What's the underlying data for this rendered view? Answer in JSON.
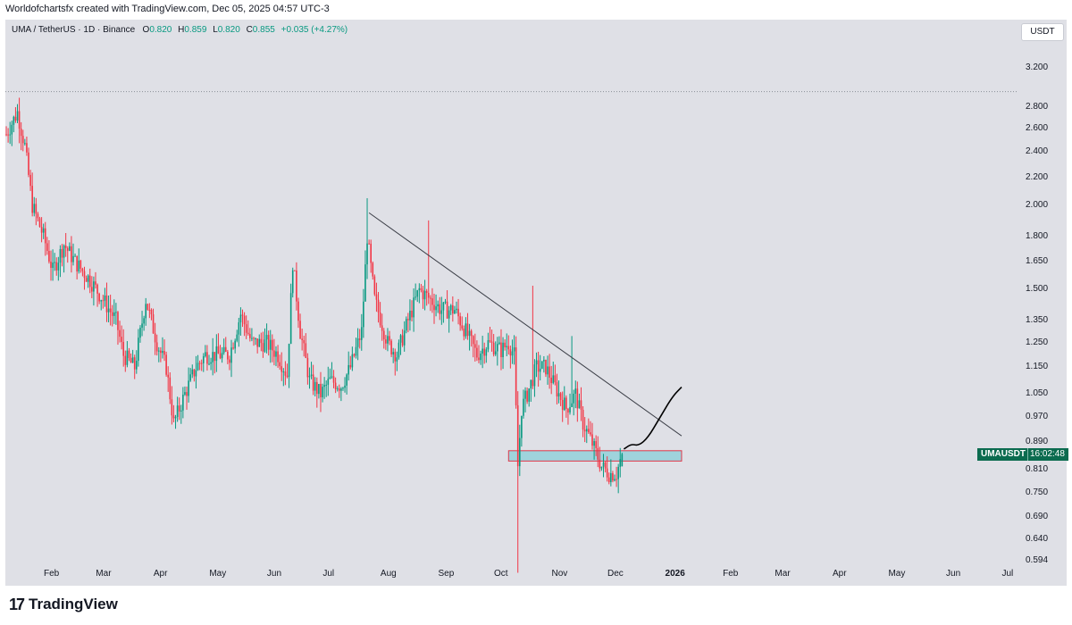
{
  "header": {
    "created_by": "Worldofchartsfx created with TradingView.com, Dec 05, 2025 04:57 UTC-3"
  },
  "symbol": {
    "name": "UMA / TetherUS · 1D · Binance",
    "open_label": "O",
    "open": "0.820",
    "high_label": "H",
    "high": "0.859",
    "low_label": "L",
    "low": "0.820",
    "close_label": "C",
    "close": "0.855",
    "change": "+0.035 (+4.27%)"
  },
  "currency": "USDT",
  "price_tag": {
    "symbol": "UMAUSDT",
    "countdown": "16:02:48"
  },
  "brand": {
    "mark": "17",
    "name": "TradingView"
  },
  "colors": {
    "up": "#089981",
    "down": "#f23645",
    "background": "#dfe0e6",
    "zone_fill": "#9fd3dc",
    "zone_border": "#e0384a"
  },
  "chart_data": {
    "type": "candlestick",
    "y_scale": "log",
    "ylim": [
      0.58,
      3.6
    ],
    "y_ticks": [
      "3.200",
      "2.800",
      "2.600",
      "2.400",
      "2.200",
      "2.000",
      "1.800",
      "1.650",
      "1.500",
      "1.350",
      "1.250",
      "1.150",
      "1.050",
      "0.970",
      "0.890",
      "0.810",
      "0.750",
      "0.690",
      "0.640",
      "0.594"
    ],
    "x_ticks": [
      "Feb",
      "Mar",
      "Apr",
      "May",
      "Jun",
      "Jul",
      "Aug",
      "Sep",
      "Oct",
      "Nov",
      "Dec",
      "2026",
      "Feb",
      "Mar",
      "Apr",
      "May",
      "Jun",
      "Jul"
    ],
    "x_tick_dates": [
      "2025-02-01",
      "2025-03-01",
      "2025-04-01",
      "2025-05-01",
      "2025-06-01",
      "2025-07-01",
      "2025-08-01",
      "2025-09-01",
      "2025-10-01",
      "2025-11-01",
      "2025-12-01",
      "2026-01-01",
      "2026-02-01",
      "2026-03-01",
      "2026-04-01",
      "2026-05-01",
      "2026-06-01",
      "2026-07-01"
    ],
    "data_start": "2025-01-08",
    "last_candle": {
      "date": "2025-12-05",
      "open": 0.82,
      "high": 0.859,
      "low": 0.82,
      "close": 0.855
    },
    "price_path": [
      [
        "2025-01-08",
        2.55
      ],
      [
        "2025-01-14",
        2.75
      ],
      [
        "2025-01-18",
        2.45
      ],
      [
        "2025-01-22",
        2.0
      ],
      [
        "2025-01-28",
        1.8
      ],
      [
        "2025-02-02",
        1.6
      ],
      [
        "2025-02-08",
        1.75
      ],
      [
        "2025-02-14",
        1.65
      ],
      [
        "2025-02-22",
        1.55
      ],
      [
        "2025-03-01",
        1.45
      ],
      [
        "2025-03-08",
        1.35
      ],
      [
        "2025-03-12",
        1.2
      ],
      [
        "2025-03-18",
        1.15
      ],
      [
        "2025-03-24",
        1.45
      ],
      [
        "2025-03-30",
        1.25
      ],
      [
        "2025-04-04",
        1.15
      ],
      [
        "2025-04-08",
        0.95
      ],
      [
        "2025-04-14",
        1.05
      ],
      [
        "2025-04-20",
        1.15
      ],
      [
        "2025-04-25",
        1.2
      ],
      [
        "2025-05-01",
        1.2
      ],
      [
        "2025-05-08",
        1.2
      ],
      [
        "2025-05-14",
        1.38
      ],
      [
        "2025-05-20",
        1.25
      ],
      [
        "2025-05-28",
        1.25
      ],
      [
        "2025-06-03",
        1.2
      ],
      [
        "2025-06-08",
        1.12
      ],
      [
        "2025-06-11",
        1.65
      ],
      [
        "2025-06-15",
        1.3
      ],
      [
        "2025-06-20",
        1.1
      ],
      [
        "2025-06-26",
        1.05
      ],
      [
        "2025-07-01",
        1.1
      ],
      [
        "2025-07-07",
        1.08
      ],
      [
        "2025-07-12",
        1.15
      ],
      [
        "2025-07-18",
        1.3
      ],
      [
        "2025-07-21",
        1.8
      ],
      [
        "2025-07-25",
        1.45
      ],
      [
        "2025-08-01",
        1.25
      ],
      [
        "2025-08-06",
        1.2
      ],
      [
        "2025-08-12",
        1.35
      ],
      [
        "2025-08-18",
        1.5
      ],
      [
        "2025-08-24",
        1.45
      ],
      [
        "2025-08-30",
        1.4
      ],
      [
        "2025-09-06",
        1.4
      ],
      [
        "2025-09-12",
        1.3
      ],
      [
        "2025-09-18",
        1.2
      ],
      [
        "2025-09-24",
        1.25
      ],
      [
        "2025-10-01",
        1.22
      ],
      [
        "2025-10-05",
        1.25
      ],
      [
        "2025-10-08",
        1.2
      ],
      [
        "2025-10-10",
        0.82
      ],
      [
        "2025-10-12",
        1.0
      ],
      [
        "2025-10-15",
        1.05
      ],
      [
        "2025-10-20",
        1.15
      ],
      [
        "2025-10-25",
        1.15
      ],
      [
        "2025-11-01",
        1.05
      ],
      [
        "2025-11-05",
        1.0
      ],
      [
        "2025-11-10",
        1.05
      ],
      [
        "2025-11-14",
        0.95
      ],
      [
        "2025-11-18",
        0.9
      ],
      [
        "2025-11-24",
        0.82
      ],
      [
        "2025-11-28",
        0.8
      ],
      [
        "2025-12-02",
        0.8
      ],
      [
        "2025-12-05",
        0.855
      ]
    ],
    "trendline": {
      "start": [
        "2025-07-22",
        1.95
      ],
      "end": [
        "2026-01-06",
        0.91
      ]
    },
    "support_zone": {
      "from": "2025-10-05",
      "to": "2026-01-06",
      "low": 0.835,
      "high": 0.865
    },
    "projection_path": [
      [
        "2025-12-06",
        0.87
      ],
      [
        "2025-12-10",
        0.885
      ],
      [
        "2025-12-14",
        0.88
      ],
      [
        "2025-12-19",
        0.905
      ],
      [
        "2025-12-25",
        0.965
      ],
      [
        "2026-01-01",
        1.04
      ],
      [
        "2026-01-06",
        1.075
      ]
    ],
    "dotted_level": 2.95
  }
}
